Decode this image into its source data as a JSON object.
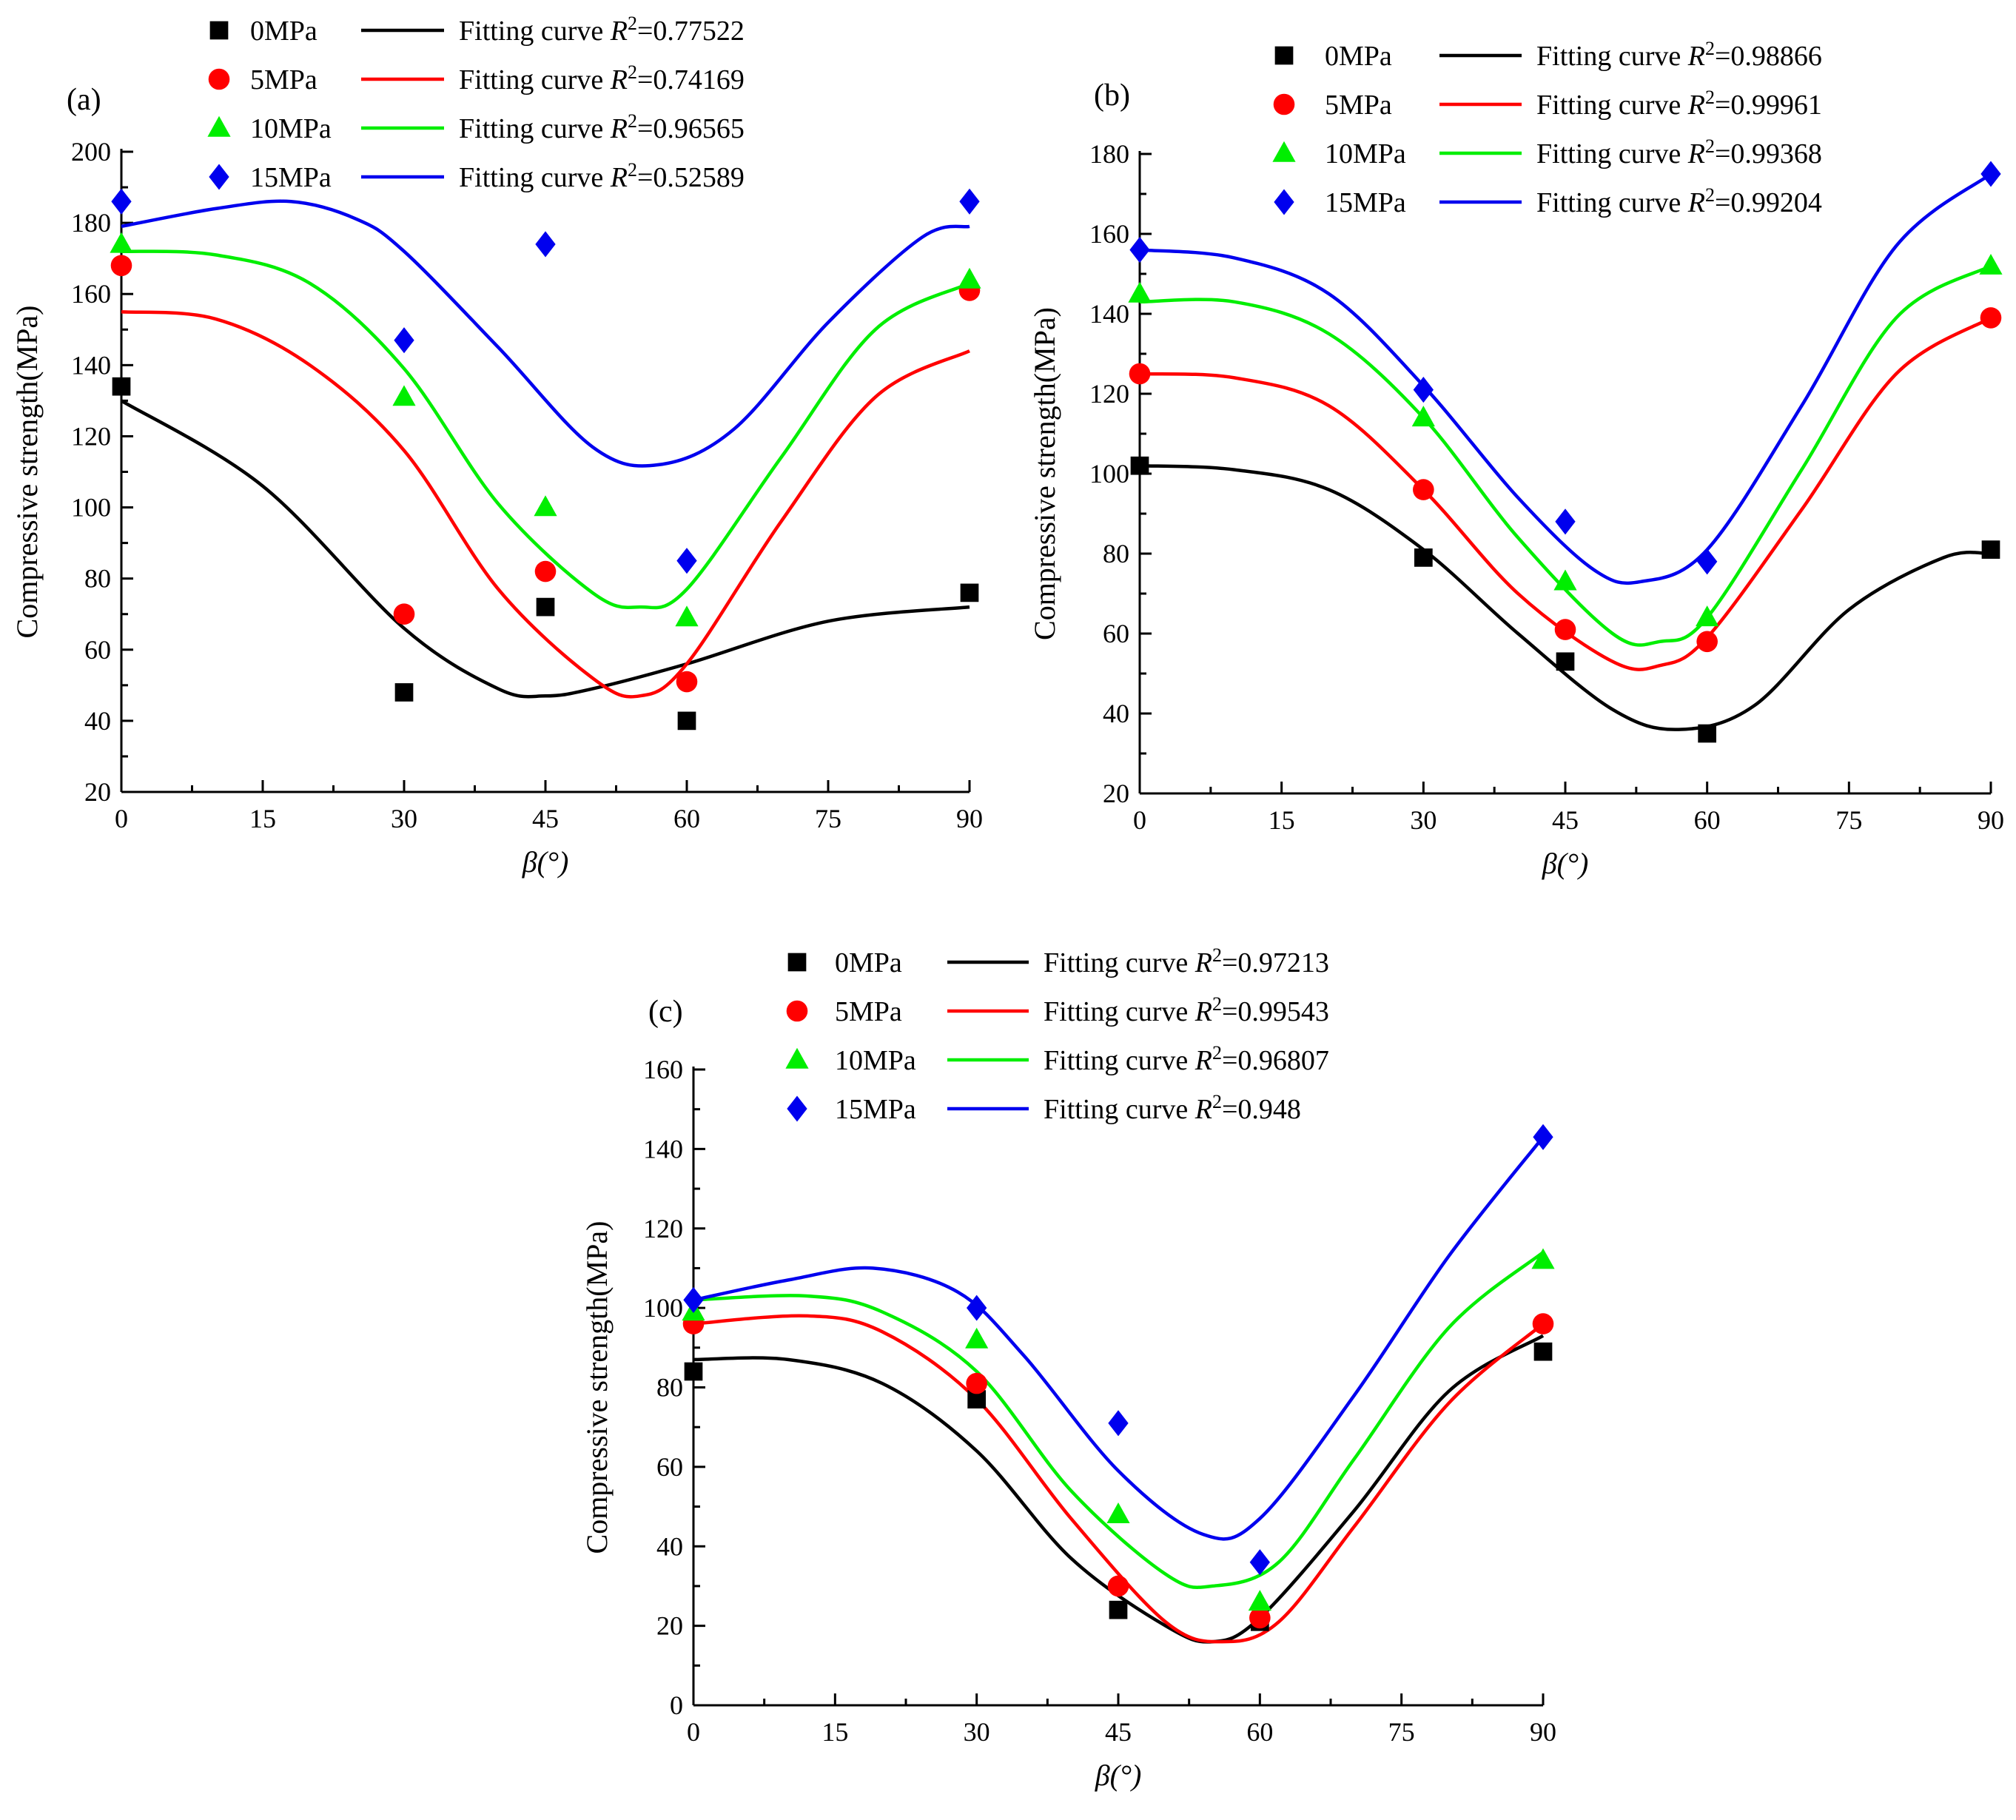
{
  "chart_data": [
    {
      "panel": "(a)",
      "type": "scatter",
      "xlabel": "β(°)",
      "ylabel": "Compressive strength(MPa)",
      "xlim": [
        0,
        90
      ],
      "ylim": [
        20,
        200
      ],
      "xticks": [
        0,
        15,
        30,
        45,
        60,
        75,
        90
      ],
      "yticks": [
        20,
        40,
        60,
        80,
        100,
        120,
        140,
        160,
        180,
        200
      ],
      "x": [
        0,
        30,
        45,
        60,
        90
      ],
      "series": [
        {
          "name": "0MPa",
          "fit_label": "Fitting curve ",
          "r2": "=0.77522",
          "color": "#000000",
          "marker": "square",
          "values": [
            134,
            48,
            72,
            40,
            76
          ],
          "fit": [
            [
              0,
              130
            ],
            [
              15,
              106
            ],
            [
              30,
              66
            ],
            [
              40,
              49
            ],
            [
              45,
              47
            ],
            [
              50,
              49
            ],
            [
              60,
              56
            ],
            [
              75,
              68
            ],
            [
              90,
              72
            ]
          ]
        },
        {
          "name": "5MPa",
          "fit_label": "Fitting curve ",
          "r2": "=0.74169",
          "color": "#ff0000",
          "marker": "circle",
          "values": [
            168,
            70,
            82,
            51,
            161
          ],
          "fit": [
            [
              0,
              155
            ],
            [
              10,
              153
            ],
            [
              20,
              140
            ],
            [
              30,
              116
            ],
            [
              40,
              77
            ],
            [
              50,
              52
            ],
            [
              55,
              47
            ],
            [
              60,
              56
            ],
            [
              70,
              96
            ],
            [
              80,
              131
            ],
            [
              90,
              144
            ]
          ]
        },
        {
          "name": "10MPa",
          "fit_label": "Fitting curve ",
          "r2": "=0.96565",
          "color": "#00ee00",
          "marker": "triangle",
          "values": [
            174,
            131,
            100,
            69,
            164
          ],
          "fit": [
            [
              0,
              172
            ],
            [
              10,
              171
            ],
            [
              20,
              163
            ],
            [
              30,
              139
            ],
            [
              40,
              101
            ],
            [
              50,
              76
            ],
            [
              55,
              72
            ],
            [
              60,
              77
            ],
            [
              70,
              114
            ],
            [
              80,
              150
            ],
            [
              90,
              163
            ]
          ]
        },
        {
          "name": "15MPa",
          "fit_label": "Fitting curve ",
          "r2": "=0.52589",
          "color": "#0000ee",
          "marker": "diamond",
          "values": [
            186,
            147,
            174,
            85,
            186
          ],
          "fit": [
            [
              0,
              179
            ],
            [
              10,
              184
            ],
            [
              18,
              186
            ],
            [
              25,
              181
            ],
            [
              30,
              172
            ],
            [
              40,
              145
            ],
            [
              50,
              117
            ],
            [
              57,
              112
            ],
            [
              65,
              122
            ],
            [
              75,
              152
            ],
            [
              85,
              176
            ],
            [
              90,
              179
            ]
          ]
        }
      ]
    },
    {
      "panel": "(b)",
      "type": "scatter",
      "xlabel": "β(°)",
      "ylabel": "Compressive strength(MPa)",
      "xlim": [
        0,
        90
      ],
      "ylim": [
        20,
        180
      ],
      "xticks": [
        0,
        15,
        30,
        45,
        60,
        75,
        90
      ],
      "yticks": [
        20,
        40,
        60,
        80,
        100,
        120,
        140,
        160,
        180
      ],
      "x": [
        0,
        30,
        45,
        60,
        90
      ],
      "series": [
        {
          "name": "0MPa",
          "fit_label": "Fitting curve ",
          "r2": "=0.98866",
          "color": "#000000",
          "marker": "square",
          "values": [
            102,
            79,
            53,
            35,
            81
          ],
          "fit": [
            [
              0,
              102
            ],
            [
              10,
              101
            ],
            [
              20,
              96
            ],
            [
              30,
              81
            ],
            [
              40,
              60
            ],
            [
              50,
              41
            ],
            [
              57,
              36
            ],
            [
              65,
              42
            ],
            [
              75,
              66
            ],
            [
              85,
              79
            ],
            [
              90,
              80
            ]
          ]
        },
        {
          "name": "5MPa",
          "fit_label": "Fitting curve ",
          "r2": "=0.99961",
          "color": "#ff0000",
          "marker": "circle",
          "values": [
            125,
            96,
            61,
            58,
            139
          ],
          "fit": [
            [
              0,
              125
            ],
            [
              10,
              124
            ],
            [
              20,
              117
            ],
            [
              30,
              96
            ],
            [
              40,
              70
            ],
            [
              50,
              53
            ],
            [
              55,
              52
            ],
            [
              60,
              59
            ],
            [
              70,
              91
            ],
            [
              80,
              125
            ],
            [
              90,
              139
            ]
          ]
        },
        {
          "name": "10MPa",
          "fit_label": "Fitting curve ",
          "r2": "=0.99368",
          "color": "#00ee00",
          "marker": "triangle",
          "values": [
            145,
            114,
            73,
            64,
            152
          ],
          "fit": [
            [
              0,
              143
            ],
            [
              10,
              143
            ],
            [
              20,
              135
            ],
            [
              30,
              114
            ],
            [
              40,
              84
            ],
            [
              50,
              60
            ],
            [
              55,
              58
            ],
            [
              60,
              64
            ],
            [
              70,
              101
            ],
            [
              80,
              139
            ],
            [
              90,
              152
            ]
          ]
        },
        {
          "name": "15MPa",
          "fit_label": "Fitting curve ",
          "r2": "=0.99204",
          "color": "#0000ee",
          "marker": "diamond",
          "values": [
            156,
            121,
            88,
            78,
            175
          ],
          "fit": [
            [
              0,
              156
            ],
            [
              10,
              154
            ],
            [
              20,
              145
            ],
            [
              30,
              122
            ],
            [
              40,
              94
            ],
            [
              48,
              76
            ],
            [
              53,
              73
            ],
            [
              60,
              81
            ],
            [
              70,
              117
            ],
            [
              80,
              157
            ],
            [
              90,
              175
            ]
          ]
        }
      ]
    },
    {
      "panel": "(c)",
      "type": "scatter",
      "xlabel": "β(°)",
      "ylabel": "Compressive strength(MPa)",
      "xlim": [
        0,
        90
      ],
      "ylim": [
        0,
        160
      ],
      "xticks": [
        0,
        15,
        30,
        45,
        60,
        75,
        90
      ],
      "yticks": [
        0,
        20,
        40,
        60,
        80,
        100,
        120,
        140,
        160
      ],
      "x": [
        0,
        30,
        45,
        60,
        90
      ],
      "series": [
        {
          "name": "0MPa",
          "fit_label": "Fitting curve ",
          "r2": "=0.97213",
          "color": "#000000",
          "marker": "square",
          "values": [
            84,
            77,
            24,
            21,
            89
          ],
          "fit": [
            [
              0,
              87
            ],
            [
              10,
              87
            ],
            [
              20,
              81
            ],
            [
              30,
              64
            ],
            [
              40,
              37
            ],
            [
              50,
              20
            ],
            [
              55,
              16
            ],
            [
              60,
              22
            ],
            [
              70,
              49
            ],
            [
              80,
              79
            ],
            [
              90,
              93
            ]
          ]
        },
        {
          "name": "5MPa",
          "fit_label": "Fitting curve ",
          "r2": "=0.99543",
          "color": "#ff0000",
          "marker": "circle",
          "values": [
            96,
            81,
            30,
            22,
            96
          ],
          "fit": [
            [
              0,
              96
            ],
            [
              12,
              98
            ],
            [
              20,
              94
            ],
            [
              30,
              77
            ],
            [
              40,
              47
            ],
            [
              50,
              21
            ],
            [
              56,
              16
            ],
            [
              62,
              21
            ],
            [
              70,
              45
            ],
            [
              80,
              76
            ],
            [
              90,
              96
            ]
          ]
        },
        {
          "name": "10MPa",
          "fit_label": "Fitting curve ",
          "r2": "=0.96807",
          "color": "#00ee00",
          "marker": "triangle",
          "values": [
            99,
            92,
            48,
            26,
            112
          ],
          "fit": [
            [
              0,
              102
            ],
            [
              12,
              103
            ],
            [
              20,
              99
            ],
            [
              30,
              84
            ],
            [
              40,
              54
            ],
            [
              50,
              33
            ],
            [
              55,
              30
            ],
            [
              62,
              36
            ],
            [
              70,
              62
            ],
            [
              80,
              95
            ],
            [
              90,
              114
            ]
          ]
        },
        {
          "name": "15MPa",
          "fit_label": "Fitting curve ",
          "r2": "=0.948",
          "color": "#0000ee",
          "marker": "diamond",
          "values": [
            102,
            100,
            71,
            36,
            143
          ],
          "fit": [
            [
              0,
              102
            ],
            [
              10,
              107
            ],
            [
              19,
              110
            ],
            [
              28,
              104
            ],
            [
              35,
              88
            ],
            [
              45,
              59
            ],
            [
              54,
              43
            ],
            [
              60,
              47
            ],
            [
              70,
              78
            ],
            [
              80,
              113
            ],
            [
              90,
              143
            ]
          ]
        }
      ]
    }
  ]
}
